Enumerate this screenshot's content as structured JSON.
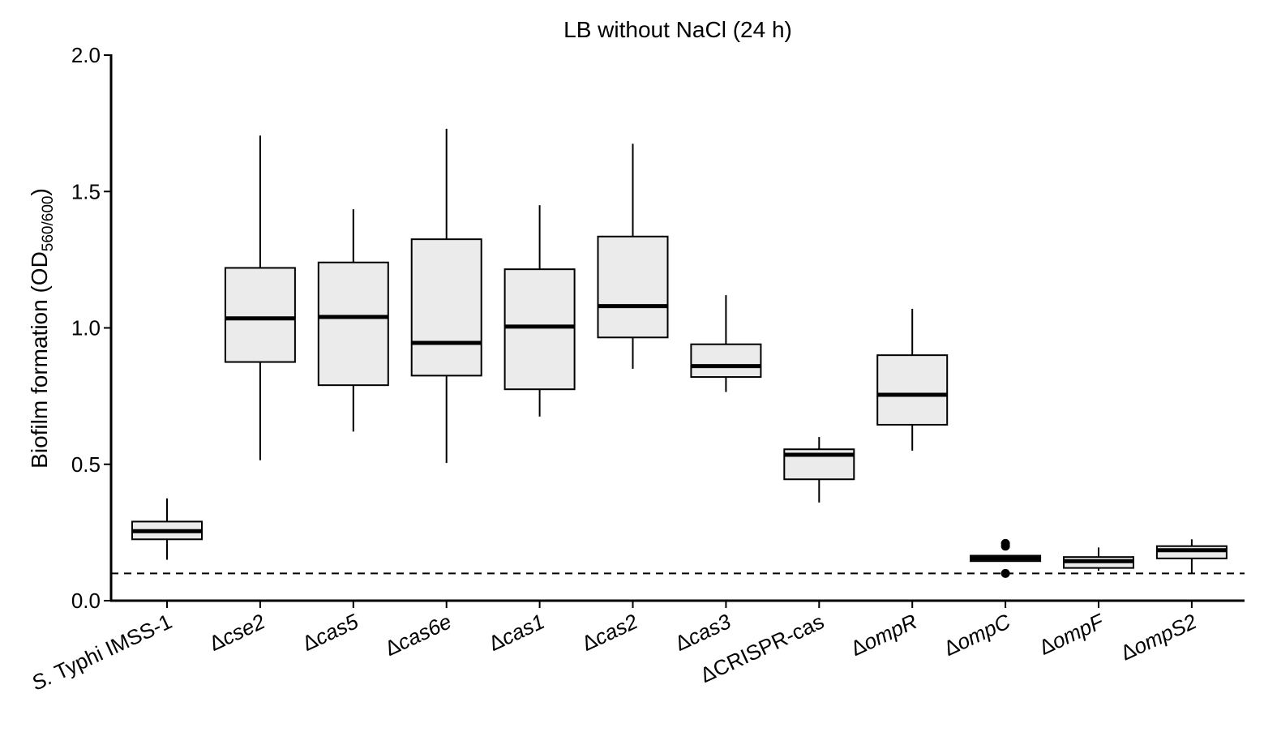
{
  "chart_data": {
    "type": "boxplot",
    "title": "LB without NaCl (24 h)",
    "xlabel": "",
    "ylabel": {
      "main": "Biofilm formation (OD",
      "sub": "560/600",
      "close": ")"
    },
    "ylim": [
      0,
      2.0
    ],
    "yticks": [
      {
        "value": 0.0,
        "label": "0.0"
      },
      {
        "value": 0.5,
        "label": "0.5"
      },
      {
        "value": 1.0,
        "label": "1.0"
      },
      {
        "value": 1.5,
        "label": "1.5"
      },
      {
        "value": 2.0,
        "label": "2.0"
      }
    ],
    "reference_line": {
      "value": 0.1,
      "style": "dashed"
    },
    "box_fill": "#ebebeb",
    "series": [
      {
        "prefix": "",
        "name": "S.",
        "suffix": " Typhi IMSS-1",
        "min": 0.15,
        "q1": 0.225,
        "median": 0.255,
        "q3": 0.29,
        "max": 0.375,
        "outliers": []
      },
      {
        "prefix": "Δ",
        "name": "cse2",
        "suffix": "",
        "min": 0.515,
        "q1": 0.875,
        "median": 1.035,
        "q3": 1.22,
        "max": 1.705,
        "outliers": []
      },
      {
        "prefix": "Δ",
        "name": "cas5",
        "suffix": "",
        "min": 0.62,
        "q1": 0.79,
        "median": 1.04,
        "q3": 1.24,
        "max": 1.435,
        "outliers": []
      },
      {
        "prefix": "Δ",
        "name": "cas6e",
        "suffix": "",
        "min": 0.505,
        "q1": 0.825,
        "median": 0.945,
        "q3": 1.325,
        "max": 1.73,
        "outliers": []
      },
      {
        "prefix": "Δ",
        "name": "cas1",
        "suffix": "",
        "min": 0.675,
        "q1": 0.775,
        "median": 1.005,
        "q3": 1.215,
        "max": 1.45,
        "outliers": []
      },
      {
        "prefix": "Δ",
        "name": "cas2",
        "suffix": "",
        "min": 0.85,
        "q1": 0.965,
        "median": 1.08,
        "q3": 1.335,
        "max": 1.675,
        "outliers": []
      },
      {
        "prefix": "Δ",
        "name": "cas3",
        "suffix": "",
        "min": 0.765,
        "q1": 0.82,
        "median": 0.86,
        "q3": 0.94,
        "max": 1.12,
        "outliers": []
      },
      {
        "prefix": "Δ",
        "name": "CRISPR-cas",
        "suffix": "",
        "upright": true,
        "min": 0.36,
        "q1": 0.445,
        "median": 0.535,
        "q3": 0.555,
        "max": 0.6,
        "outliers": []
      },
      {
        "prefix": "Δ",
        "name": "ompR",
        "suffix": "",
        "min": 0.55,
        "q1": 0.645,
        "median": 0.755,
        "q3": 0.9,
        "max": 1.07,
        "outliers": []
      },
      {
        "prefix": "Δ",
        "name": "ompC",
        "suffix": "",
        "min": 0.145,
        "q1": 0.145,
        "median": 0.155,
        "q3": 0.165,
        "max": 0.165,
        "outliers": [
          0.21,
          0.2,
          0.1
        ]
      },
      {
        "prefix": "Δ",
        "name": "ompF",
        "suffix": "",
        "min": 0.11,
        "q1": 0.12,
        "median": 0.145,
        "q3": 0.16,
        "max": 0.195,
        "outliers": []
      },
      {
        "prefix": "Δ",
        "name": "ompS2",
        "suffix": "",
        "min": 0.1,
        "q1": 0.155,
        "median": 0.185,
        "q3": 0.2,
        "max": 0.225,
        "outliers": []
      }
    ]
  }
}
